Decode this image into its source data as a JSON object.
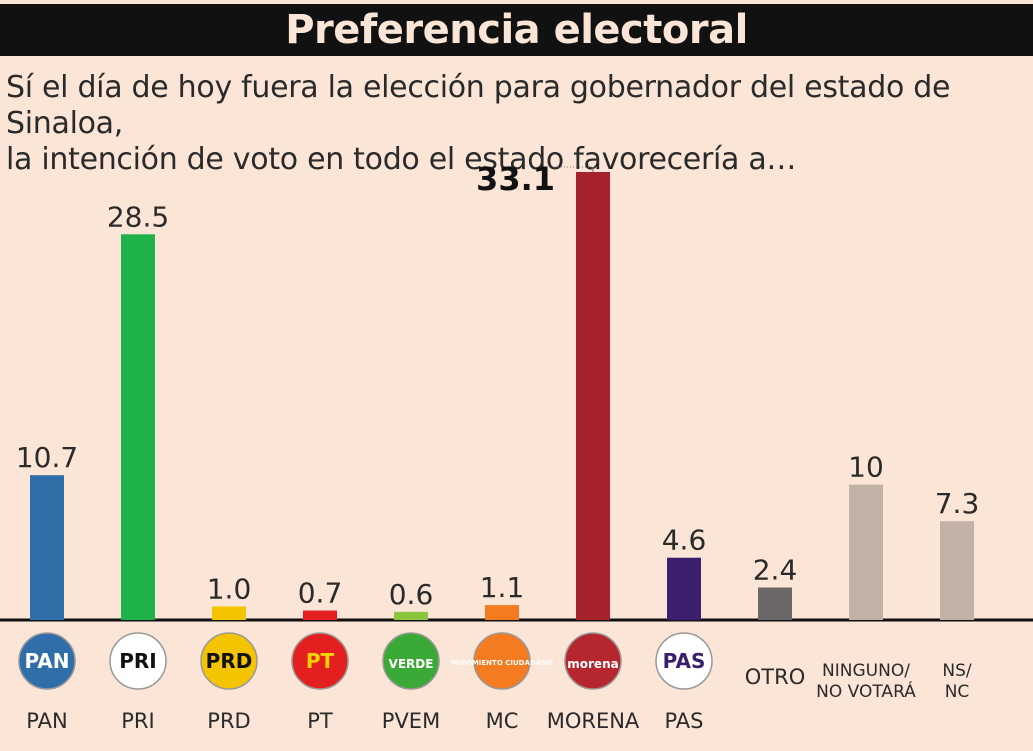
{
  "header": {
    "title": "Preferencia electoral",
    "subtitle_line1": "Sí el día de hoy fuera la elección para gobernador del estado de Sinaloa,",
    "subtitle_line2": "la intención de voto en todo el estado favorecería a…"
  },
  "chart_data": {
    "type": "bar",
    "categories": [
      "PAN",
      "PRI",
      "PRD",
      "PT",
      "PVEM",
      "MC",
      "MORENA",
      "PAS",
      "OTRO",
      "NINGUNO/\nNO VOTARÁ",
      "NS/\nNC"
    ],
    "values": [
      10.7,
      28.5,
      1.0,
      0.7,
      0.6,
      1.1,
      33.1,
      4.6,
      2.4,
      10,
      7.3
    ],
    "value_labels": [
      "10.7",
      "28.5",
      "1.0",
      "0.7",
      "0.6",
      "1.1",
      "33.1",
      "4.6",
      "2.4",
      "10",
      "7.3"
    ],
    "colors": [
      "#2f6ea8",
      "#1fb24a",
      "#f5c400",
      "#e41f1f",
      "#8cc63f",
      "#f47b20",
      "#a5222a",
      "#3b1f6e",
      "#6b6767",
      "#c2b2a6",
      "#c2b2a6"
    ],
    "logos": [
      {
        "icon": "pan-logo",
        "text": "PAN",
        "fg": "#ffffff",
        "bg": "#2f6ea8"
      },
      {
        "icon": "pri-logo",
        "text": "PRI",
        "fg": "#111111",
        "bg": "#ffffff"
      },
      {
        "icon": "prd-logo",
        "text": "PRD",
        "fg": "#111111",
        "bg": "#f5c400"
      },
      {
        "icon": "pt-logo",
        "text": "PT",
        "fg": "#f5d300",
        "bg": "#e41f1f"
      },
      {
        "icon": "pvem-logo",
        "text": "VERDE",
        "fg": "#ffffff",
        "bg": "#3aa935"
      },
      {
        "icon": "mc-logo",
        "text": "MOVIMIENTO CIUDADANO",
        "fg": "#ffffff",
        "bg": "#f47b20"
      },
      {
        "icon": "morena-logo",
        "text": "morena",
        "fg": "#ffffff",
        "bg": "#b5262e"
      },
      {
        "icon": "pas-logo",
        "text": "PAS",
        "fg": "#3b1f6e",
        "bg": "#ffffff"
      }
    ],
    "highlight_index": 6,
    "ylim": [
      0,
      33.1
    ],
    "grid": false,
    "xlabel": "",
    "ylabel": ""
  }
}
